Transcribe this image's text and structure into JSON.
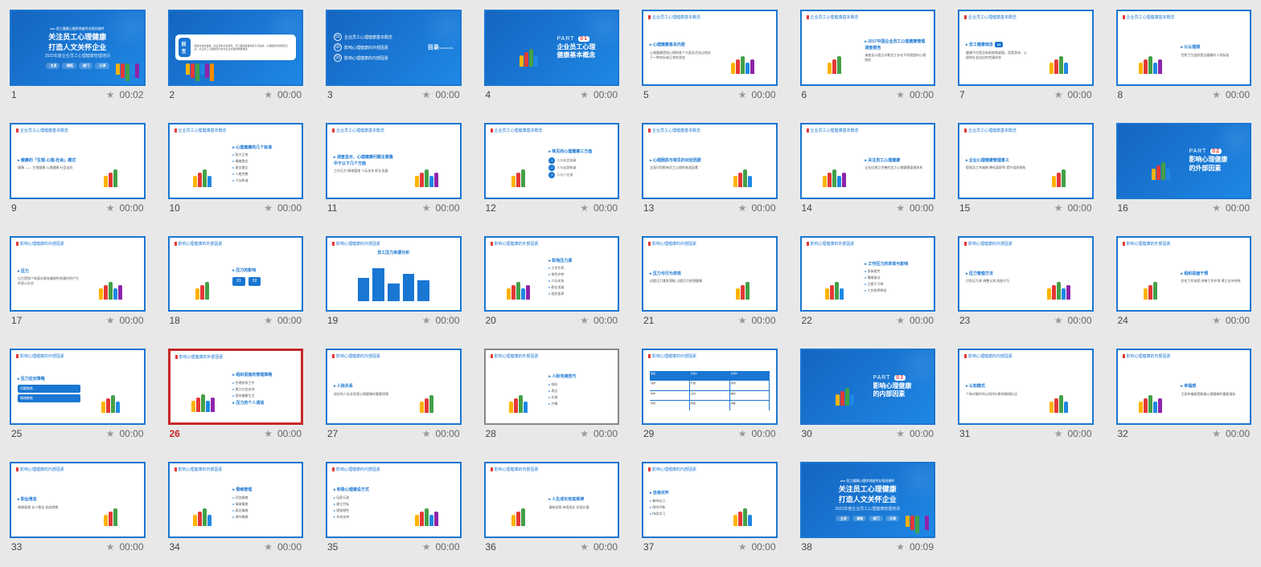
{
  "colors": {
    "primary": "#1976d2",
    "accent": "#e53935",
    "selected": "#c62828",
    "bg": "#e8e8e8",
    "text": "#444444"
  },
  "star_glyph": "★",
  "slides": [
    {
      "n": 1,
      "dur": "00:02",
      "type": "title",
      "title_l1": "关注员工心理健康",
      "title_l2": "打造人文关怀企业",
      "sub": "2022年度企业员工心理健康管理培训",
      "pills": [
        "主讲",
        "课程",
        "部门",
        "分享"
      ]
    },
    {
      "n": 2,
      "dur": "00:00",
      "type": "preface",
      "label": "前言",
      "text": "随着社会的发展，企业竞争日益激烈，员工面临着各种压力与挑战，心理健康问题逐渐凸显。关注员工心理健康已成为企业管理的重要课题。"
    },
    {
      "n": 3,
      "dur": "00:00",
      "type": "toc",
      "label": "目录",
      "label_en": "/contents",
      "items": [
        {
          "n": "01",
          "t": "企业员工心理健康基本概念"
        },
        {
          "n": "02",
          "t": "影响心理健康的外部因素"
        },
        {
          "n": "03",
          "t": "影响心理健康的内部因素"
        }
      ]
    },
    {
      "n": 4,
      "dur": "00:00",
      "type": "part",
      "part": "PART 01",
      "title": "企业员工心理健康基本概念"
    },
    {
      "n": 5,
      "dur": "00:00",
      "type": "content",
      "header": "企业员工心理健康基本概念",
      "heading": "心理健康基本内容",
      "body": "心理健康是指心理的各个方面及活动过程处于一种良好或正常的状态"
    },
    {
      "n": 6,
      "dur": "00:00",
      "type": "content",
      "header": "企业员工心理健康基本概念",
      "heading": "2017中国企业员工心理健康管理调查报告",
      "body": "调查显示超过半数员工存在不同程度的心理困扰"
    },
    {
      "n": 7,
      "dur": "00:00",
      "type": "content",
      "header": "企业员工心理健康基本概念",
      "heading": "员工健康观念",
      "num": "01",
      "body": "健康不仅是没有疾病和虚弱，而是身体、心理和社会适应的完满状态"
    },
    {
      "n": 8,
      "dur": "00:00",
      "type": "content",
      "header": "企业员工心理健康基本概念",
      "heading": "公认理想",
      "body": "世界卫生组织提出健康的十项标准"
    },
    {
      "n": 9,
      "dur": "00:00",
      "type": "content",
      "header": "企业员工心理健康基本概念",
      "heading": "健康的「生理-心理-社会」模式",
      "body": "健康 —— 生理健康 心理健康 社会适应"
    },
    {
      "n": 10,
      "dur": "00:00",
      "type": "content",
      "header": "企业员工心理健康基本概念",
      "heading": "心理健康的几个标准",
      "bullets": [
        "智力正常",
        "情绪稳定",
        "意志健全",
        "人格完整",
        "人际和谐"
      ]
    },
    {
      "n": 11,
      "dur": "00:00",
      "type": "content",
      "header": "企业员工心理健康基本概念",
      "heading": "调查显示，心理健康问题主要集中于以下几个方面",
      "body": "工作压力 情绪管理 人际关系 职业发展"
    },
    {
      "n": 12,
      "dur": "00:00",
      "type": "content",
      "header": "企业员工心理健康基本概念",
      "heading": "常见的心理健康三方面",
      "items": [
        "人与社会协调",
        "人与自身和谐",
        "人与人交流"
      ]
    },
    {
      "n": 13,
      "dur": "00:00",
      "type": "content",
      "header": "企业员工心理健康基本概念",
      "heading": "心理困扰与常见的对应因素",
      "body": "全面识别影响员工心理的各类因素"
    },
    {
      "n": 14,
      "dur": "00:00",
      "type": "content",
      "header": "企业员工心理健康基本概念",
      "heading": "关注员工心理健康",
      "body": "企业应建立完善的员工心理健康管理体系"
    },
    {
      "n": 15,
      "dur": "00:00",
      "type": "content",
      "header": "企业员工心理健康基本概念",
      "heading": "企业心理健康管理意义",
      "body": "提高员工幸福感 降低离职率 提升组织绩效"
    },
    {
      "n": 16,
      "dur": "00:00",
      "type": "part",
      "part": "PART 02",
      "title": "影响心理健康的外部因素"
    },
    {
      "n": 17,
      "dur": "00:00",
      "type": "content",
      "header": "影响心理健康的外部因素",
      "heading": "压力",
      "body": "压力是指个体面对具有威胁性刺激时所产生的身心反应"
    },
    {
      "n": 18,
      "dur": "00:00",
      "type": "content",
      "header": "影响心理健康的外部因素",
      "heading": "压力的影响",
      "nums": [
        "01",
        "02"
      ]
    },
    {
      "n": 19,
      "dur": "00:00",
      "type": "chart",
      "header": "影响心理健康的外部因素",
      "heading": "员工压力来源分析",
      "bars": [
        60,
        85,
        45,
        70,
        55
      ]
    },
    {
      "n": 20,
      "dur": "00:00",
      "type": "content",
      "header": "影响心理健康的外部因素",
      "heading": "职场压力源",
      "bullets": [
        "工作负荷",
        "角色冲突",
        "人际关系",
        "职业发展",
        "组织变革"
      ]
    },
    {
      "n": 21,
      "dur": "00:00",
      "type": "content",
      "header": "影响心理健康的外部因素",
      "heading": "压力与行为表现",
      "body": "适度压力激发潜能 过度压力损害健康"
    },
    {
      "n": 22,
      "dur": "00:00",
      "type": "content",
      "header": "影响心理健康的外部因素",
      "heading": "工作压力的表现与影响",
      "bullets": [
        "身体疲劳",
        "情绪波动",
        "注意力下降",
        "工作效率降低"
      ]
    },
    {
      "n": 23,
      "dur": "00:00",
      "type": "content",
      "header": "影响心理健康的外部因素",
      "heading": "压力管理方法",
      "body": "识别压力源 调整认知 改变行为"
    },
    {
      "n": 24,
      "dur": "00:00",
      "type": "content",
      "header": "影响心理健康的外部因素",
      "heading": "组织层面干预",
      "body": "优化工作流程 改善工作环境 建立支持系统"
    },
    {
      "n": 25,
      "dur": "00:00",
      "type": "content",
      "header": "影响心理健康的外部因素",
      "heading": "压力应对策略",
      "boxes": [
        "问题聚焦",
        "情绪聚焦"
      ]
    },
    {
      "n": 26,
      "dur": "00:00",
      "type": "content",
      "header": "影响心理健康的外部因素",
      "heading": "组织层面的管理策略",
      "heading2": "压力的个人调适",
      "bullets": [
        "合理安排工作",
        "建立社会支持",
        "保持健康生活"
      ],
      "selected": true
    },
    {
      "n": 27,
      "dur": "00:00",
      "type": "content",
      "header": "影响心理健康的外部因素",
      "heading": "人际关系",
      "body": "良好的人际关系是心理健康的重要保障"
    },
    {
      "n": 28,
      "dur": "00:00",
      "type": "content",
      "header": "影响心理健康的外部因素",
      "heading": "人际沟通技巧",
      "bullets": [
        "倾听",
        "表达",
        "反馈",
        "共情"
      ],
      "hover": true
    },
    {
      "n": 29,
      "dur": "00:00",
      "type": "table",
      "header": "影响心理健康的外部因素",
      "heading": "对比分析",
      "cols": [
        "维度",
        "表现A",
        "表现B"
      ],
      "rows": [
        [
          "沟通",
          "开放",
          "封闭"
        ],
        [
          "协作",
          "主动",
          "被动"
        ],
        [
          "支持",
          "积极",
          "消极"
        ]
      ]
    },
    {
      "n": 30,
      "dur": "00:00",
      "type": "part",
      "part": "PART 03",
      "title": "影响心理健康的内部因素"
    },
    {
      "n": 31,
      "dur": "00:00",
      "type": "content",
      "header": "影响心理健康的内部因素",
      "heading": "认知模式",
      "body": "个体对事件的认知评价影响情绪反应"
    },
    {
      "n": 32,
      "dur": "00:00",
      "type": "content",
      "header": "影响心理健康的内部因素",
      "heading": "幸福感",
      "body": "主观幸福感是衡量心理健康的重要指标"
    },
    {
      "n": 33,
      "dur": "00:00",
      "type": "content",
      "header": "影响心理健康的内部因素",
      "heading": "职业倦怠",
      "body": "情感衰竭 去人格化 低成就感"
    },
    {
      "n": 34,
      "dur": "00:00",
      "type": "content",
      "header": "影响心理健康的内部因素",
      "heading": "情绪管理",
      "bullets": [
        "识别情绪",
        "接纳情绪",
        "表达情绪",
        "调节情绪"
      ]
    },
    {
      "n": 35,
      "dur": "00:00",
      "type": "content",
      "header": "影响心理健康的内部因素",
      "heading": "积极心理建设方式",
      "bullets": [
        "培养乐观",
        "建立目标",
        "增强韧性",
        "寻求支持"
      ]
    },
    {
      "n": 36,
      "dur": "00:00",
      "type": "content",
      "header": "影响心理健康的内部因素",
      "heading": "人生成长有其规律",
      "body": "接纳自我 持续成长 实现价值"
    },
    {
      "n": 37,
      "dur": "00:00",
      "type": "content",
      "header": "影响心理健康的内部因素",
      "heading": "自我关怀",
      "bullets": [
        "善待自己",
        "保持平衡",
        "持续学习"
      ]
    },
    {
      "n": 38,
      "dur": "00:09",
      "type": "title",
      "title_l1": "关注员工心理健康",
      "title_l2": "打造人文关怀企业",
      "sub": "2022年度企业员工心理健康管理培训",
      "pills": [
        "主讲",
        "课程",
        "部门",
        "分享"
      ]
    }
  ]
}
